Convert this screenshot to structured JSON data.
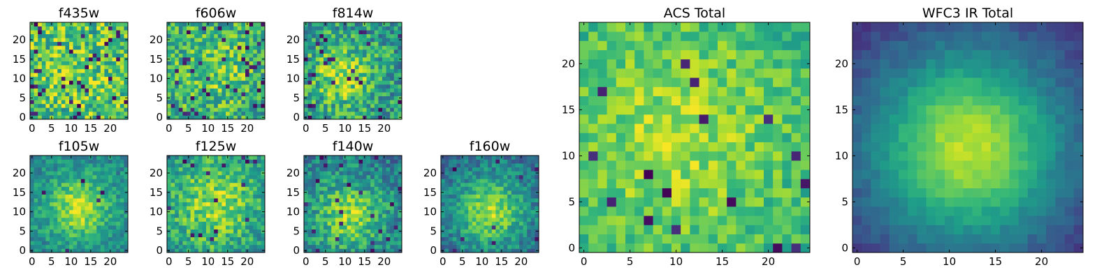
{
  "chart_data": [
    {
      "type": "heatmap",
      "title": "f435w",
      "grid_size": 25,
      "xlim": [
        0,
        24
      ],
      "ylim": [
        0,
        24
      ],
      "xticks": [
        0,
        5,
        10,
        15,
        20
      ],
      "yticks": [
        0,
        5,
        10,
        15,
        20
      ],
      "xtick_labels": [
        "0",
        "5",
        "10",
        "15",
        "20"
      ],
      "ytick_labels": [
        "0",
        "5",
        "10",
        "15",
        "20"
      ],
      "colormap": "viridis",
      "pattern": "uniform noise with scattered dark low pixels, no clear central source",
      "seed": 11
    },
    {
      "type": "heatmap",
      "title": "f606w",
      "grid_size": 25,
      "xlim": [
        0,
        24
      ],
      "ylim": [
        0,
        24
      ],
      "xticks": [
        0,
        5,
        10,
        15,
        20
      ],
      "yticks": [
        0,
        5,
        10,
        15,
        20
      ],
      "xtick_labels": [
        "0",
        "5",
        "10",
        "15",
        "20"
      ],
      "ytick_labels": [
        "0",
        "5",
        "10",
        "15",
        "20"
      ],
      "colormap": "viridis",
      "pattern": "noise with faint brightening near center",
      "seed": 23
    },
    {
      "type": "heatmap",
      "title": "f814w",
      "grid_size": 25,
      "xlim": [
        0,
        24
      ],
      "ylim": [
        0,
        24
      ],
      "xticks": [
        0,
        5,
        10,
        15,
        20
      ],
      "yticks": [
        0,
        5,
        10,
        15,
        20
      ],
      "xtick_labels": [
        "0",
        "5",
        "10",
        "15",
        "20"
      ],
      "ytick_labels": [
        "0",
        "5",
        "10",
        "15",
        "20"
      ],
      "colormap": "viridis",
      "pattern": "bright source near x~8-10, y~10-12",
      "seed": 37
    },
    {
      "type": "heatmap",
      "title": "f105w",
      "grid_size": 25,
      "xlim": [
        0,
        24
      ],
      "ylim": [
        0,
        24
      ],
      "xticks": [
        0,
        5,
        10,
        15,
        20
      ],
      "yticks": [
        0,
        5,
        10,
        15,
        20
      ],
      "xtick_labels": [
        "0",
        "5",
        "10",
        "15",
        "20"
      ],
      "ytick_labels": [
        "0",
        "5",
        "10",
        "15",
        "20"
      ],
      "colormap": "viridis",
      "pattern": "smooth blob centered near x~12, y~11",
      "seed": 41
    },
    {
      "type": "heatmap",
      "title": "f125w",
      "grid_size": 25,
      "xlim": [
        0,
        24
      ],
      "ylim": [
        0,
        24
      ],
      "xticks": [
        0,
        5,
        10,
        15,
        20
      ],
      "yticks": [
        0,
        5,
        10,
        15,
        20
      ],
      "xtick_labels": [
        "0",
        "5",
        "10",
        "15",
        "20"
      ],
      "ytick_labels": [
        "0",
        "5",
        "10",
        "15",
        "20"
      ],
      "colormap": "viridis",
      "pattern": "broad bright region near center",
      "seed": 53
    },
    {
      "type": "heatmap",
      "title": "f140w",
      "grid_size": 25,
      "xlim": [
        0,
        24
      ],
      "ylim": [
        0,
        24
      ],
      "xticks": [
        0,
        5,
        10,
        15,
        20
      ],
      "yticks": [
        0,
        5,
        10,
        15,
        20
      ],
      "xtick_labels": [
        "0",
        "5",
        "10",
        "15",
        "20"
      ],
      "ytick_labels": [
        "0",
        "5",
        "10",
        "15",
        "20"
      ],
      "colormap": "viridis",
      "pattern": "bright blob near x~11, y~9",
      "seed": 67
    },
    {
      "type": "heatmap",
      "title": "f160w",
      "grid_size": 25,
      "xlim": [
        0,
        24
      ],
      "ylim": [
        0,
        24
      ],
      "xticks": [
        0,
        5,
        10,
        15,
        20
      ],
      "yticks": [
        0,
        5,
        10,
        15,
        20
      ],
      "xtick_labels": [
        "0",
        "5",
        "10",
        "15",
        "20"
      ],
      "ytick_labels": [
        "0",
        "5",
        "10",
        "15",
        "20"
      ],
      "colormap": "viridis",
      "pattern": "bright blob near x~12, y~10, darker corners",
      "seed": 79
    },
    {
      "type": "heatmap",
      "title": "ACS Total",
      "grid_size": 25,
      "xlim": [
        0,
        24
      ],
      "ylim": [
        0,
        24
      ],
      "xticks": [
        0,
        5,
        10,
        15,
        20
      ],
      "yticks": [
        0,
        5,
        10,
        15,
        20
      ],
      "xtick_labels": [
        "0",
        "5",
        "10",
        "15",
        "20"
      ],
      "ytick_labels": [
        "0",
        "5",
        "10",
        "15",
        "20"
      ],
      "colormap": "viridis",
      "pattern": "mostly green/yellow noise with bright patches near x~6 and x~13, y~12",
      "seed": 83
    },
    {
      "type": "heatmap",
      "title": "WFC3 IR Total",
      "grid_size": 25,
      "xlim": [
        0,
        24
      ],
      "ylim": [
        0,
        24
      ],
      "xticks": [
        0,
        5,
        10,
        15,
        20
      ],
      "yticks": [
        0,
        5,
        10,
        15,
        20
      ],
      "xtick_labels": [
        "0",
        "5",
        "10",
        "15",
        "20"
      ],
      "ytick_labels": [
        "0",
        "5",
        "10",
        "15",
        "20"
      ],
      "colormap": "viridis",
      "pattern": "smooth bright source centered near x~12, y~11 fading to dark corners",
      "seed": 97
    }
  ]
}
